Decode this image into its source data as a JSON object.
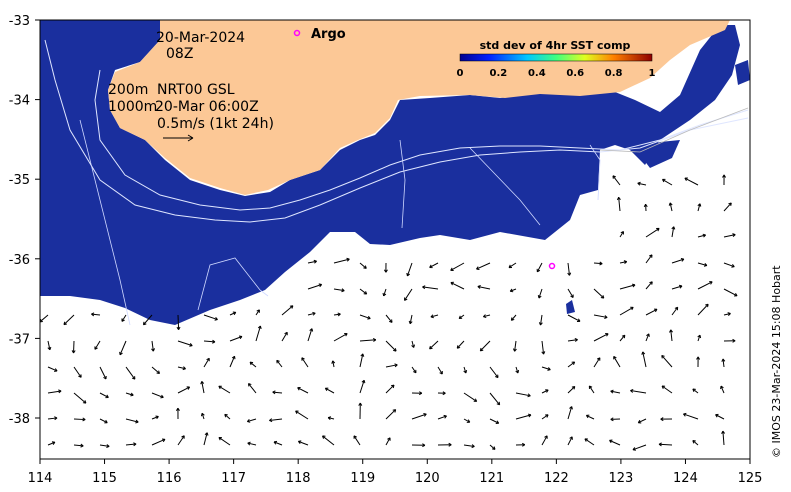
{
  "map": {
    "date": "20-Mar-2024",
    "hour": "08Z",
    "depth_contours": "200m",
    "depth_contours_2": "1000m",
    "source": "NRT00 GSL",
    "source_time": "20-Mar 06:00Z",
    "vector_scale": "0.5m/s (1kt 24h)",
    "argo_label": "Argo",
    "credit": "© IMOS 23-Mar-2024 15:08 Hobart",
    "colors": {
      "land": "#fcc896",
      "ocean_low": "#1a2f9e",
      "argo": "#ff00ff",
      "vectors": "#000000"
    }
  },
  "colorbar": {
    "title": "std dev of 4hr SST comp",
    "ticks": [
      "0",
      "0.2",
      "0.4",
      "0.6",
      "0.8",
      "1"
    ]
  },
  "axes": {
    "x_ticks": [
      "114",
      "115",
      "116",
      "117",
      "118",
      "119",
      "120",
      "121",
      "122",
      "123",
      "124",
      "125"
    ],
    "y_ticks": [
      "-33",
      "-34",
      "-35",
      "-36",
      "-37",
      "-38"
    ]
  }
}
